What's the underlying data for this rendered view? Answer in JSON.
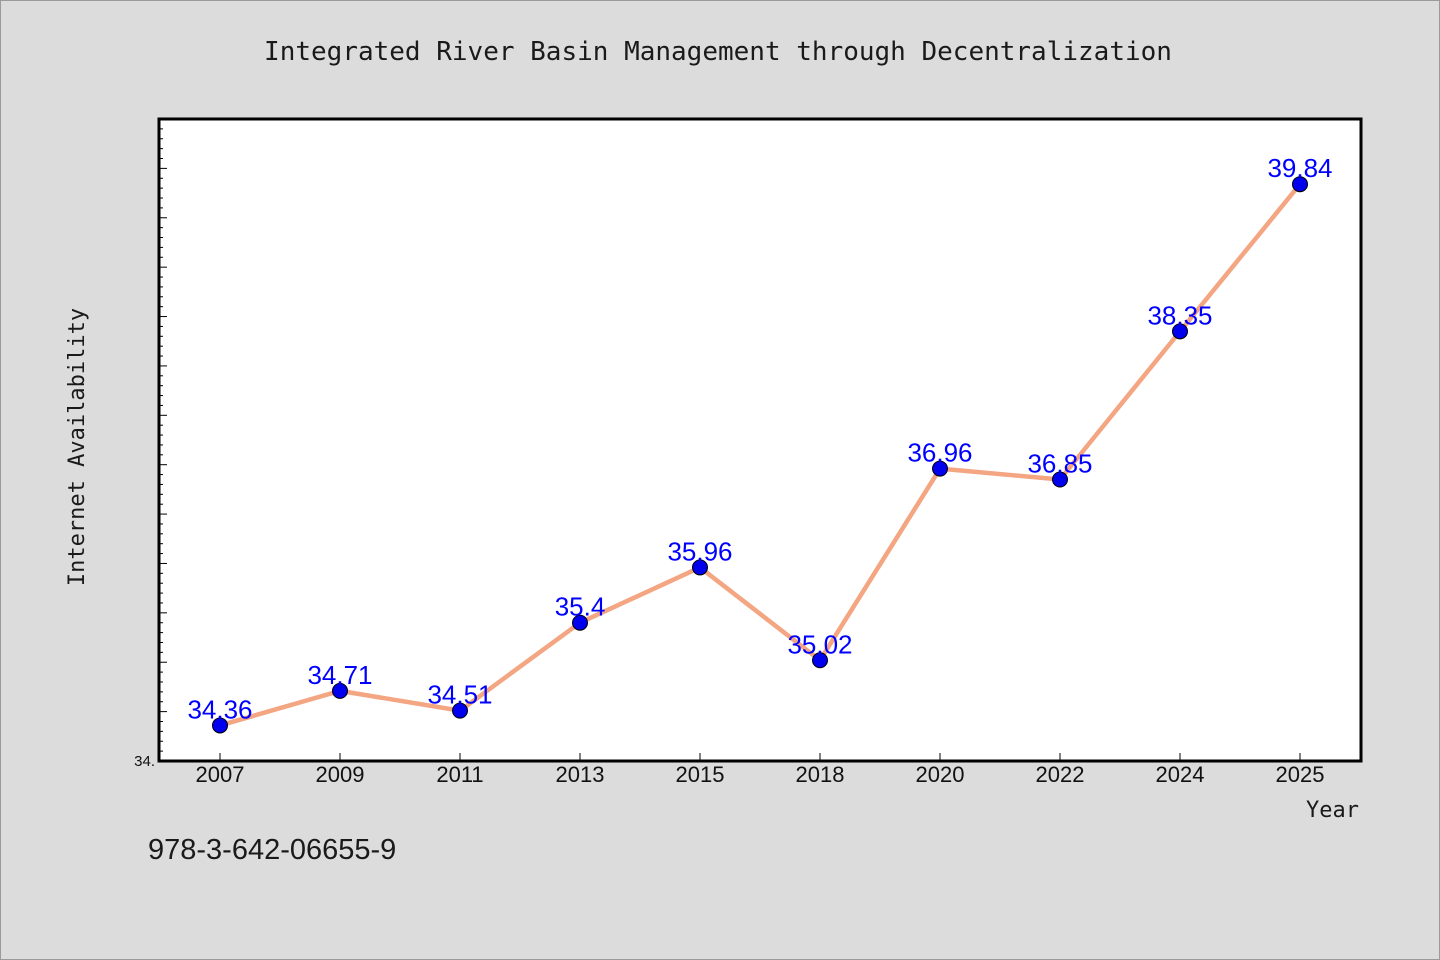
{
  "chart_data": {
    "type": "line",
    "title": "Integrated River Basin Management through Decentralization",
    "xlabel": "Year",
    "ylabel": "Internet Availability",
    "categories": [
      "2007",
      "2009",
      "2011",
      "2013",
      "2015",
      "2018",
      "2020",
      "2022",
      "2024",
      "2025"
    ],
    "values": [
      34.36,
      34.71,
      34.51,
      35.4,
      35.96,
      35.02,
      36.96,
      36.85,
      38.35,
      39.84
    ],
    "data_labels": [
      "34.36",
      "34.71",
      "34.51",
      "35.4",
      "35.96",
      "35.02",
      "36.96",
      "36.85",
      "38.35",
      "39.84"
    ],
    "ylim": [
      34.0,
      40.5
    ],
    "y_tick_label": "34.",
    "grid": false,
    "legend": "none",
    "line_color": "#f4a582",
    "marker_color": "#0000ee",
    "label_color": "#0000ff"
  },
  "footer": {
    "isbn": "978-3-642-06655-9"
  }
}
